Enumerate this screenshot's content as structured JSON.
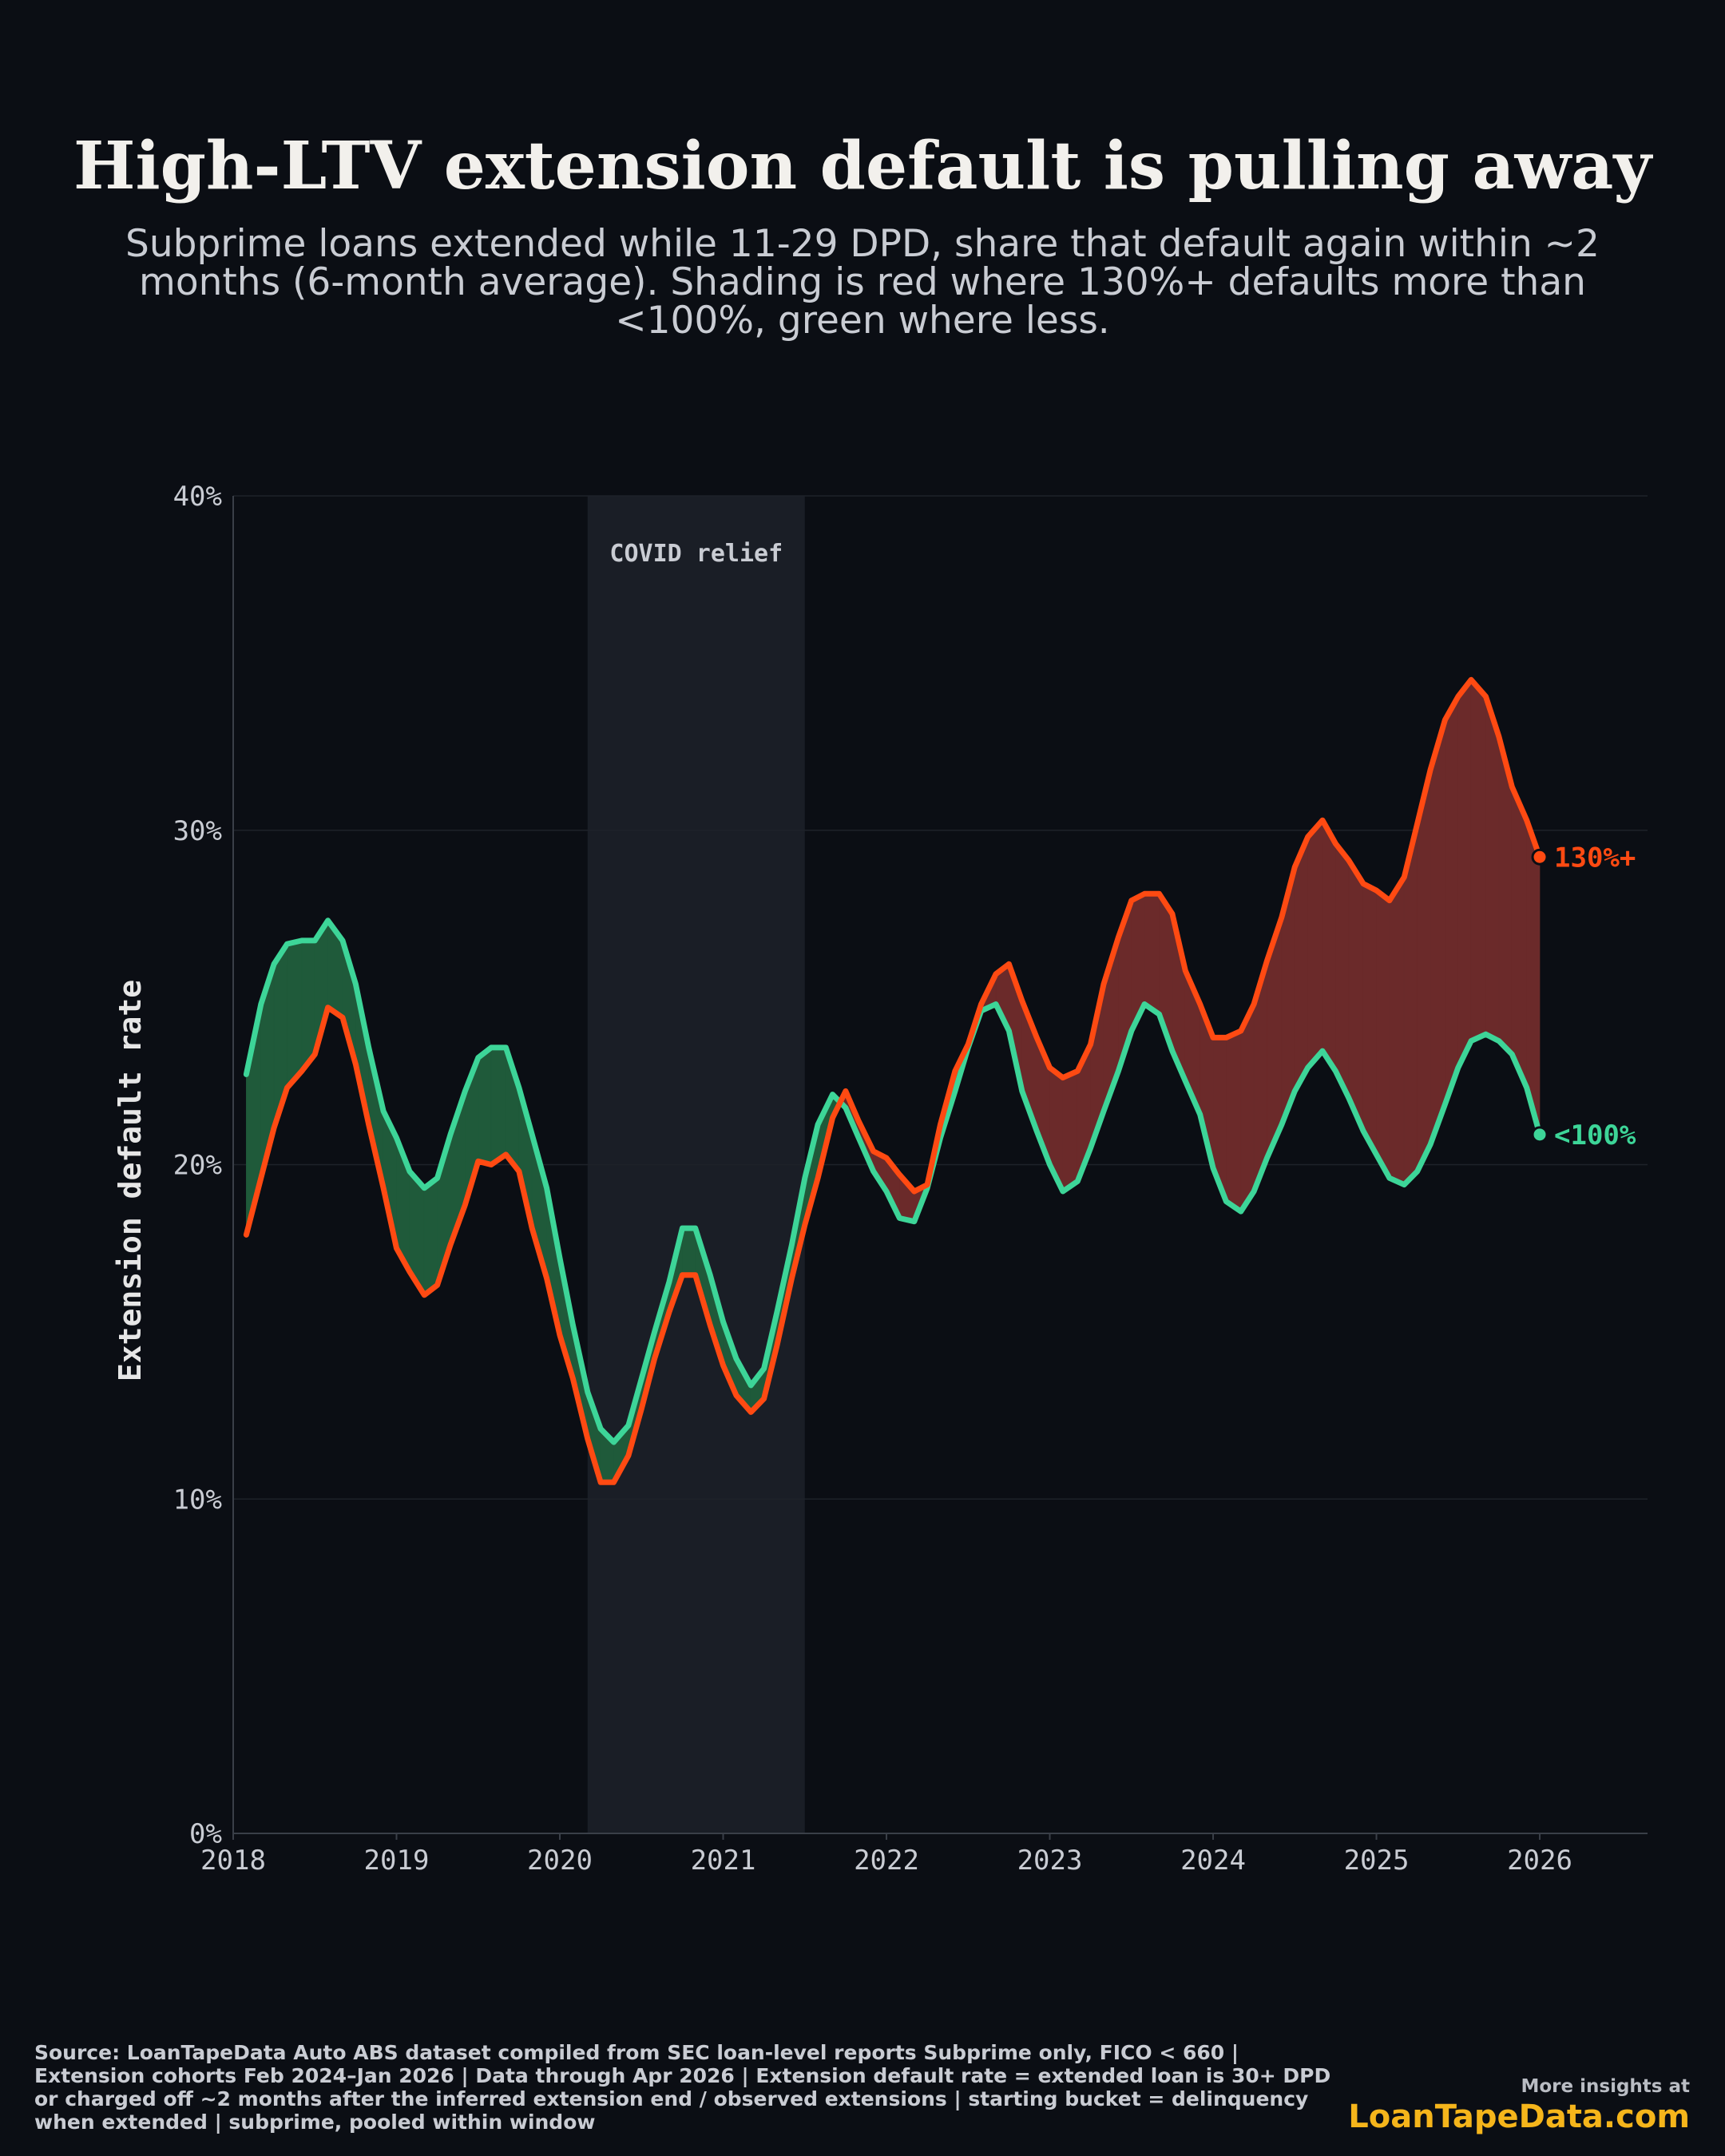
{
  "header": {
    "title": "High-LTV extension default is pulling away",
    "subtitle": "Subprime loans extended while 11-29 DPD, share that default again within ~2 months (6-month average). Shading is red where 130%+ defaults more than <100%, green where less."
  },
  "footer": {
    "source": "Source: LoanTapeData Auto ABS dataset compiled from SEC loan-level reports Subprime only, FICO < 660 | Extension cohorts Feb 2024–Jan 2026 | Data through Apr 2026 | Extension default rate = extended loan is 30+ DPD or charged off ~2 months after the inferred extension end / observed extensions | starting bucket = delinquency when extended | subprime, pooled within window",
    "more": "More insights at",
    "brand": "LoanTapeData.com"
  },
  "colors": {
    "background": "#0b0e14",
    "high_ltv": "#ff4a12",
    "low_ltv": "#3dd598",
    "fill_red": "#6b2a2a",
    "fill_green": "#1f5a3a",
    "covid_band": "#1a1e26",
    "grid": "#1e2229",
    "tick_text": "#c9ccd3"
  },
  "chart_data": {
    "type": "line",
    "ylabel": "Extension default rate",
    "xlabel": "",
    "xlim": [
      2018,
      2026.66
    ],
    "ylim": [
      0,
      40
    ],
    "y_ticks": [
      0,
      10,
      20,
      30,
      40
    ],
    "y_tick_labels": [
      "0%",
      "10%",
      "20%",
      "30%",
      "40%"
    ],
    "x_ticks": [
      2018,
      2019,
      2020,
      2021,
      2022,
      2023,
      2024,
      2025,
      2026
    ],
    "x_tick_labels": [
      "2018",
      "2019",
      "2020",
      "2021",
      "2022",
      "2023",
      "2024",
      "2025",
      "2026"
    ],
    "grid": true,
    "annotation": {
      "label": "COVID relief",
      "x_start": 2020.17,
      "x_end": 2021.5
    },
    "series": [
      {
        "name": "130%+",
        "label": "130%+",
        "x": [
          2018.08,
          2018.17,
          2018.25,
          2018.33,
          2018.42,
          2018.5,
          2018.58,
          2018.67,
          2018.75,
          2018.83,
          2018.92,
          2019.0,
          2019.08,
          2019.17,
          2019.25,
          2019.33,
          2019.42,
          2019.5,
          2019.58,
          2019.67,
          2019.75,
          2019.83,
          2019.92,
          2020.0,
          2020.08,
          2020.17,
          2020.25,
          2020.33,
          2020.42,
          2020.5,
          2020.58,
          2020.67,
          2020.75,
          2020.83,
          2020.92,
          2021.0,
          2021.08,
          2021.17,
          2021.25,
          2021.33,
          2021.42,
          2021.5,
          2021.58,
          2021.67,
          2021.75,
          2021.83,
          2021.92,
          2022.0,
          2022.08,
          2022.17,
          2022.25,
          2022.33,
          2022.42,
          2022.5,
          2022.58,
          2022.67,
          2022.75,
          2022.83,
          2022.92,
          2023.0,
          2023.08,
          2023.17,
          2023.25,
          2023.33,
          2023.42,
          2023.5,
          2023.58,
          2023.67,
          2023.75,
          2023.83,
          2023.92,
          2024.0,
          2024.08,
          2024.17,
          2024.25,
          2024.33,
          2024.42,
          2024.5,
          2024.58,
          2024.67,
          2024.75,
          2024.83,
          2024.92,
          2025.0,
          2025.08,
          2025.17,
          2025.25,
          2025.33,
          2025.42,
          2025.5,
          2025.58,
          2025.67,
          2025.75,
          2025.83,
          2025.92,
          2026.0
        ],
        "values": [
          17.9,
          19.6,
          21.1,
          22.3,
          22.8,
          23.3,
          24.7,
          24.4,
          23.0,
          21.2,
          19.3,
          17.5,
          16.8,
          16.1,
          16.4,
          17.6,
          18.8,
          20.1,
          20.0,
          20.3,
          19.8,
          18.1,
          16.6,
          14.9,
          13.6,
          11.8,
          10.5,
          10.5,
          11.3,
          12.7,
          14.2,
          15.6,
          16.7,
          16.7,
          15.2,
          14.0,
          13.1,
          12.6,
          13.0,
          14.6,
          16.6,
          18.2,
          19.6,
          21.4,
          22.2,
          21.3,
          20.4,
          20.2,
          19.7,
          19.2,
          19.4,
          21.2,
          22.8,
          23.6,
          24.8,
          25.7,
          26.0,
          24.9,
          23.8,
          22.9,
          22.6,
          22.8,
          23.6,
          25.4,
          26.8,
          27.9,
          28.1,
          28.1,
          27.5,
          25.8,
          24.8,
          23.8,
          23.8,
          24.0,
          24.8,
          26.1,
          27.4,
          28.9,
          29.8,
          30.3,
          29.6,
          29.1,
          28.4,
          28.2,
          27.9,
          28.6,
          30.2,
          31.8,
          33.3,
          34.0,
          34.5,
          34.0,
          32.8,
          31.3,
          30.3,
          29.2
        ]
      },
      {
        "name": "<100%",
        "label": "<100%",
        "x": [
          2018.08,
          2018.17,
          2018.25,
          2018.33,
          2018.42,
          2018.5,
          2018.58,
          2018.67,
          2018.75,
          2018.83,
          2018.92,
          2019.0,
          2019.08,
          2019.17,
          2019.25,
          2019.33,
          2019.42,
          2019.5,
          2019.58,
          2019.67,
          2019.75,
          2019.83,
          2019.92,
          2020.0,
          2020.08,
          2020.17,
          2020.25,
          2020.33,
          2020.42,
          2020.5,
          2020.58,
          2020.67,
          2020.75,
          2020.83,
          2020.92,
          2021.0,
          2021.08,
          2021.17,
          2021.25,
          2021.33,
          2021.42,
          2021.5,
          2021.58,
          2021.67,
          2021.75,
          2021.83,
          2021.92,
          2022.0,
          2022.08,
          2022.17,
          2022.25,
          2022.33,
          2022.42,
          2022.5,
          2022.58,
          2022.67,
          2022.75,
          2022.83,
          2022.92,
          2023.0,
          2023.08,
          2023.17,
          2023.25,
          2023.33,
          2023.42,
          2023.5,
          2023.58,
          2023.67,
          2023.75,
          2023.83,
          2023.92,
          2024.0,
          2024.08,
          2024.17,
          2024.25,
          2024.33,
          2024.42,
          2024.5,
          2024.58,
          2024.67,
          2024.75,
          2024.83,
          2024.92,
          2025.0,
          2025.08,
          2025.17,
          2025.25,
          2025.33,
          2025.42,
          2025.5,
          2025.58,
          2025.67,
          2025.75,
          2025.83,
          2025.92,
          2026.0
        ],
        "values": [
          22.7,
          24.8,
          26.0,
          26.6,
          26.7,
          26.7,
          27.3,
          26.7,
          25.4,
          23.5,
          21.6,
          20.8,
          19.8,
          19.3,
          19.6,
          20.9,
          22.2,
          23.2,
          23.5,
          23.5,
          22.3,
          20.9,
          19.3,
          17.2,
          15.2,
          13.2,
          12.1,
          11.7,
          12.2,
          13.6,
          15.0,
          16.5,
          18.1,
          18.1,
          16.7,
          15.3,
          14.2,
          13.4,
          13.9,
          15.6,
          17.6,
          19.6,
          21.2,
          22.1,
          21.7,
          20.8,
          19.8,
          19.2,
          18.4,
          18.3,
          19.3,
          20.8,
          22.2,
          23.5,
          24.6,
          24.8,
          24.0,
          22.2,
          21.0,
          20.0,
          19.2,
          19.5,
          20.5,
          21.6,
          22.8,
          24.0,
          24.8,
          24.5,
          23.4,
          22.5,
          21.5,
          19.9,
          18.9,
          18.6,
          19.2,
          20.2,
          21.2,
          22.2,
          22.9,
          23.4,
          22.8,
          22.0,
          21.0,
          20.3,
          19.6,
          19.4,
          19.8,
          20.6,
          21.8,
          22.9,
          23.7,
          23.9,
          23.7,
          23.3,
          22.3,
          20.9
        ]
      }
    ]
  }
}
